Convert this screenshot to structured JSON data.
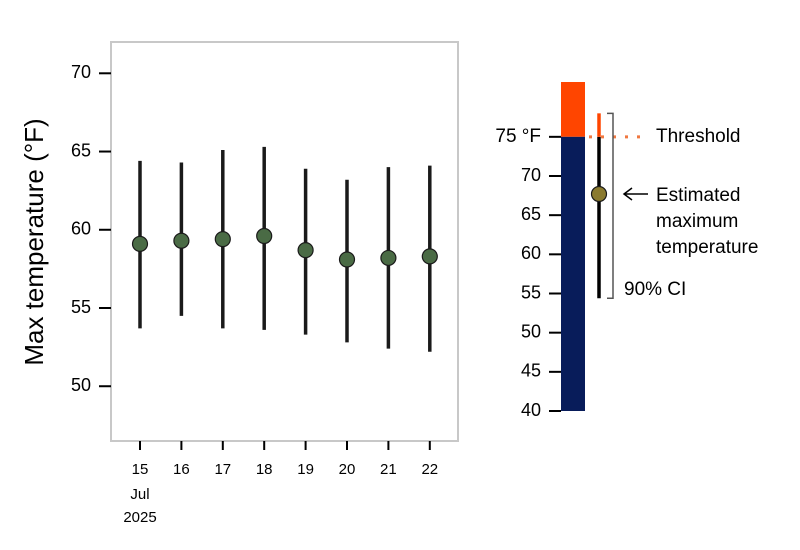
{
  "chart_data": {
    "type": "errorbar",
    "ylabel": "Max temperature (°F)",
    "categories": [
      "15",
      "16",
      "17",
      "18",
      "19",
      "20",
      "21",
      "22"
    ],
    "x_month": "Jul",
    "x_year": "2025",
    "values": [
      59.1,
      59.3,
      59.4,
      59.6,
      58.7,
      58.1,
      58.2,
      58.3
    ],
    "lower": [
      53.7,
      54.5,
      53.7,
      53.6,
      53.3,
      52.8,
      52.4,
      52.2
    ],
    "upper": [
      64.4,
      64.3,
      65.1,
      65.3,
      63.9,
      63.2,
      64.0,
      64.1
    ],
    "color": "#4a6b45",
    "ylim": [
      46.5,
      72
    ],
    "yticks": [
      50,
      55,
      60,
      65,
      70
    ],
    "colorscale": {
      "lim": [
        40,
        82
      ],
      "ticks": [
        40,
        45,
        50,
        55,
        60,
        65,
        70
      ],
      "threshold": {
        "value": 75,
        "label": "75 °F"
      },
      "threshold_text": "Threshold",
      "above_color": "#ff4500",
      "stops": [
        {
          "value": 40,
          "color": "#081c5a"
        },
        {
          "value": 50,
          "color": "#1b5568"
        },
        {
          "value": 60,
          "color": "#4a7a4e"
        },
        {
          "value": 66,
          "color": "#86862f"
        },
        {
          "value": 75,
          "color": "#d9a070"
        }
      ],
      "example": {
        "value": 67.7,
        "lower": 54.4,
        "upper": 78,
        "color": "#8a7a2e",
        "label": [
          "Estimated",
          "maximum",
          "temperature"
        ],
        "ci_label": "90% CI"
      }
    }
  }
}
